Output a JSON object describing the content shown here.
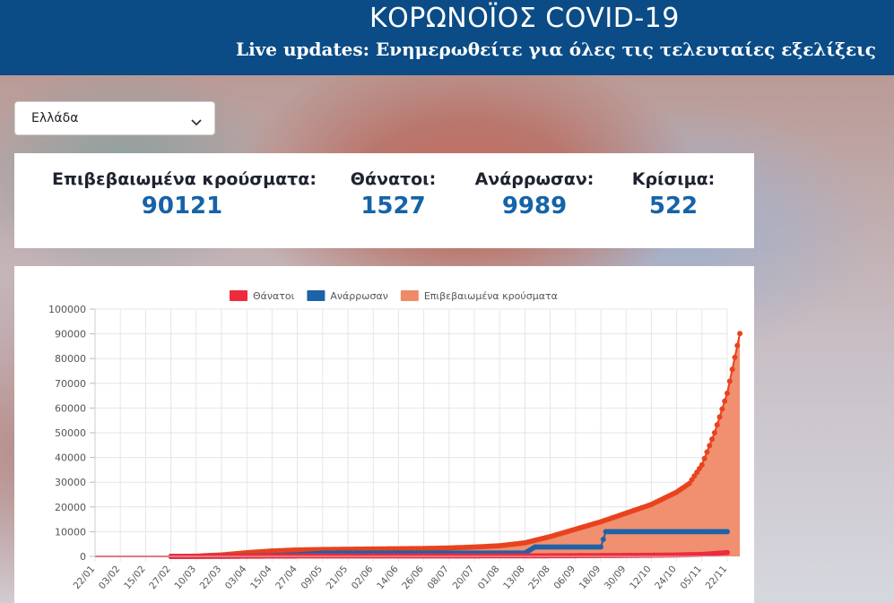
{
  "header": {
    "title": "ΚΟΡΩΝΟΪΟΣ COVID-19",
    "subtitle": "Live updates: Ενημερωθείτε για όλες τις τελευταίες εξελίξεις"
  },
  "country_select": {
    "value": "Ελλάδα"
  },
  "stats": {
    "confirmed": {
      "label": "Επιβεβαιωμένα κρούσματα:",
      "value": "90121"
    },
    "deaths": {
      "label": "Θάνατοι:",
      "value": "1527"
    },
    "recovered": {
      "label": "Ανάρρωσαν:",
      "value": "9989"
    },
    "critical": {
      "label": "Κρίσιμα:",
      "value": "522"
    }
  },
  "colors": {
    "header_bg": "#0b4c86",
    "accent_number": "#1563a8",
    "deaths": "#ee2a3c",
    "recovered": "#1e62a8",
    "confirmed_fill": "#ef8a68",
    "confirmed_line": "#e8421e"
  },
  "chart_data": {
    "type": "line",
    "legend_position": "top",
    "grid": true,
    "ylim": [
      0,
      100000
    ],
    "y_ticks": [
      0,
      10000,
      20000,
      30000,
      40000,
      50000,
      60000,
      70000,
      80000,
      90000,
      100000
    ],
    "x_tick_labels": [
      "22/01",
      "03/02",
      "15/02",
      "27/02",
      "10/03",
      "22/03",
      "03/04",
      "15/04",
      "27/04",
      "09/05",
      "21/05",
      "02/06",
      "14/06",
      "26/06",
      "08/07",
      "20/07",
      "01/08",
      "13/08",
      "25/08",
      "06/09",
      "18/09",
      "30/09",
      "12/10",
      "24/10",
      "05/11",
      "22/11"
    ],
    "series": [
      {
        "name": "Θάνατοι",
        "color": "#ee2a3c",
        "points": [
          [
            0,
            0
          ],
          [
            3,
            0
          ],
          [
            4,
            5
          ],
          [
            5,
            30
          ],
          [
            6,
            80
          ],
          [
            7,
            130
          ],
          [
            8,
            160
          ],
          [
            9,
            170
          ],
          [
            10,
            180
          ],
          [
            11,
            185
          ],
          [
            12,
            190
          ],
          [
            13,
            195
          ],
          [
            14,
            195
          ],
          [
            15,
            200
          ],
          [
            16,
            210
          ],
          [
            17,
            220
          ],
          [
            18,
            250
          ],
          [
            19,
            290
          ],
          [
            20,
            340
          ],
          [
            21,
            390
          ],
          [
            22,
            470
          ],
          [
            23,
            570
          ],
          [
            24,
            800
          ],
          [
            25,
            1527
          ]
        ]
      },
      {
        "name": "Ανάρρωσαν",
        "color": "#1e62a8",
        "points": [
          [
            0,
            0
          ],
          [
            3,
            0
          ],
          [
            4,
            10
          ],
          [
            5,
            50
          ],
          [
            6,
            150
          ],
          [
            7,
            300
          ],
          [
            8,
            700
          ],
          [
            9,
            1300
          ],
          [
            10,
            1370
          ],
          [
            11,
            1370
          ],
          [
            12,
            1374
          ],
          [
            13,
            1374
          ],
          [
            14,
            1374
          ],
          [
            15,
            1374
          ],
          [
            16,
            1374
          ],
          [
            17,
            1374
          ],
          [
            17.4,
            3800
          ],
          [
            18,
            3800
          ],
          [
            19,
            3800
          ],
          [
            20,
            3800
          ],
          [
            20.2,
            9989
          ],
          [
            21,
            9989
          ],
          [
            22,
            9989
          ],
          [
            23,
            9989
          ],
          [
            24,
            9989
          ],
          [
            25,
            9989
          ]
        ]
      },
      {
        "name": "Επιβεβαιωμένα κρούσματα",
        "color": "#e8421e",
        "fill": "#ef8a68",
        "points": [
          [
            0,
            0
          ],
          [
            3,
            0
          ],
          [
            3.5,
            10
          ],
          [
            4,
            100
          ],
          [
            5,
            600
          ],
          [
            6,
            1500
          ],
          [
            7,
            2200
          ],
          [
            8,
            2600
          ],
          [
            9,
            2800
          ],
          [
            10,
            2900
          ],
          [
            11,
            3000
          ],
          [
            12,
            3100
          ],
          [
            13,
            3200
          ],
          [
            14,
            3400
          ],
          [
            15,
            3800
          ],
          [
            16,
            4300
          ],
          [
            17,
            5500
          ],
          [
            18,
            8000
          ],
          [
            19,
            11000
          ],
          [
            20,
            14000
          ],
          [
            21,
            17500
          ],
          [
            22,
            21000
          ],
          [
            23,
            26000
          ],
          [
            23.5,
            29500
          ],
          [
            24,
            37000
          ],
          [
            24.5,
            50000
          ],
          [
            25,
            66000
          ],
          [
            25.5,
            90121
          ]
        ]
      }
    ]
  }
}
